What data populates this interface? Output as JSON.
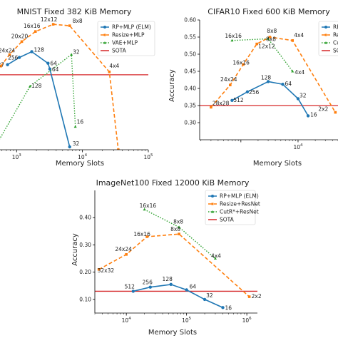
{
  "chart_data": [
    {
      "type": "line",
      "title": "MNIST Fixed 382 KiB Memory",
      "xlabel": "Memory Slots",
      "ylabel": "",
      "xscale": "log",
      "xlim": [
        560,
        100000
      ],
      "ylim": [
        0.55,
        1.0
      ],
      "xticks": [
        {
          "v": 1000,
          "b": "10",
          "e": "3"
        },
        {
          "v": 10000,
          "b": "10",
          "e": "4"
        },
        {
          "v": 100000,
          "b": "10",
          "e": "5"
        }
      ],
      "yticks": [],
      "hline": {
        "y": 0.81,
        "color": "#d62728"
      },
      "legend": {
        "position": "top-right",
        "entries": [
          "RP+MLP (ELM)",
          "Resize+MLP",
          "VAE+MLP",
          "SOTA"
        ]
      },
      "series": [
        {
          "name": "RP+MLP (ELM)",
          "color": "#1f77b4",
          "style": "solid",
          "marker": "circle",
          "x": [
            729,
            1100,
            1700,
            3000,
            3200,
            6400
          ],
          "y": [
            0.845,
            0.87,
            0.89,
            0.85,
            0.83,
            0.56
          ],
          "labels": [
            "27x27",
            "256",
            "128",
            "64",
            "64",
            "32"
          ]
        },
        {
          "name": "Resize+MLP",
          "color": "#ff7f0e",
          "style": "dashed",
          "marker": "square",
          "x": [
            576,
            784,
            1200,
            1936,
            3600,
            6400,
            25600,
            35000
          ],
          "y": [
            0.84,
            0.88,
            0.925,
            0.96,
            0.985,
            0.98,
            0.82,
            0.55
          ],
          "labels": [
            "",
            "24x24",
            "20x20",
            "16x16",
            "12x12",
            "8x8",
            "4x4",
            ""
          ]
        },
        {
          "name": "VAE+MLP",
          "color": "#2ca02c",
          "style": "dotted",
          "marker": "triangle",
          "x": [
            500,
            1600,
            6800,
            7800
          ],
          "y": [
            0.57,
            0.77,
            0.88,
            0.63
          ],
          "labels": [
            "",
            "128",
            "32",
            "16"
          ]
        }
      ]
    },
    {
      "type": "line",
      "title": "CIFAR10 Fixed 600 KiB Memory",
      "xlabel": "Memory Slots",
      "ylabel": "Accuracy",
      "xscale": "log",
      "xlim": [
        190,
        50000
      ],
      "ylim": [
        0.25,
        0.6
      ],
      "xticks": [
        {
          "v": 10000,
          "b": "10",
          "e": "4"
        }
      ],
      "yticks": [
        0.3,
        0.35,
        0.4,
        0.45,
        0.5,
        0.55,
        0.6
      ],
      "hline": {
        "y": 0.35,
        "color": "#d62728"
      },
      "legend": {
        "position": "top-right",
        "entries": [
          "RP",
          "Re",
          "CutR",
          "SO"
        ]
      },
      "series": [
        {
          "name": "RP",
          "color": "#1f77b4",
          "style": "solid",
          "marker": "circle",
          "x": [
            700,
            1300,
            3000,
            5400,
            10000,
            15000
          ],
          "y": [
            0.365,
            0.39,
            0.42,
            0.412,
            0.37,
            0.32
          ],
          "labels": [
            "512",
            "256",
            "128",
            "64",
            "32",
            "16"
          ]
        },
        {
          "name": "Re",
          "color": "#ff7f0e",
          "style": "dashed",
          "marker": "square",
          "x": [
            300,
            650,
            1100,
            1900,
            3200,
            8000,
            45000
          ],
          "y": [
            0.345,
            0.41,
            0.47,
            0.53,
            0.55,
            0.54,
            0.33
          ],
          "labels": [
            "28x28",
            "24x24",
            "16x16",
            "12x12",
            "8x8",
            "4x4",
            "2x2"
          ]
        },
        {
          "name": "CutR",
          "color": "#2ca02c",
          "style": "dotted",
          "marker": "triangle",
          "x": [
            700,
            3000,
            8000
          ],
          "y": [
            0.54,
            0.545,
            0.45
          ],
          "labels": [
            "16x16",
            "8x8",
            "4x4"
          ]
        }
      ]
    },
    {
      "type": "line",
      "title": "ImageNet100 Fixed 12000 KiB Memory",
      "xlabel": "Memory Slots",
      "ylabel": "Accuracy",
      "xscale": "log",
      "xlim": [
        3000,
        1500000
      ],
      "ylim": [
        0.05,
        0.5
      ],
      "xticks": [
        {
          "v": 10000,
          "b": "10",
          "e": "4"
        },
        {
          "v": 100000,
          "b": "10",
          "e": "5"
        },
        {
          "v": 1000000,
          "b": "10",
          "e": "6"
        }
      ],
      "yticks": [
        0.1,
        0.2,
        0.3,
        0.4
      ],
      "hline": {
        "y": 0.13,
        "color": "#d62728"
      },
      "legend": {
        "position": "top-left",
        "entries": [
          "RP+MLP (ELM)",
          "Resize+ResNet",
          "CutR*+ResNet",
          "SOTA"
        ]
      },
      "series": [
        {
          "name": "RP+MLP (ELM)",
          "color": "#1f77b4",
          "style": "solid",
          "marker": "circle",
          "x": [
            13000,
            25000,
            55000,
            100000,
            200000,
            400000
          ],
          "y": [
            0.13,
            0.145,
            0.155,
            0.135,
            0.1,
            0.07
          ],
          "labels": [
            "512",
            "256",
            "128",
            "64",
            "32",
            "16"
          ]
        },
        {
          "name": "Resize+ResNet",
          "color": "#ff7f0e",
          "style": "dashed",
          "marker": "square",
          "x": [
            3500,
            10000,
            22000,
            75000,
            1100000
          ],
          "y": [
            0.21,
            0.265,
            0.33,
            0.34,
            0.11
          ],
          "labels": [
            "32x32",
            "24x24",
            "16x16",
            "8x8",
            "2x2"
          ]
        },
        {
          "name": "CutR*+ResNet",
          "color": "#2ca02c",
          "style": "dotted",
          "marker": "triangle",
          "x": [
            20000,
            75000,
            300000
          ],
          "y": [
            0.43,
            0.365,
            0.25
          ],
          "labels": [
            "16x16",
            "8x8",
            "4x4"
          ]
        }
      ]
    }
  ]
}
